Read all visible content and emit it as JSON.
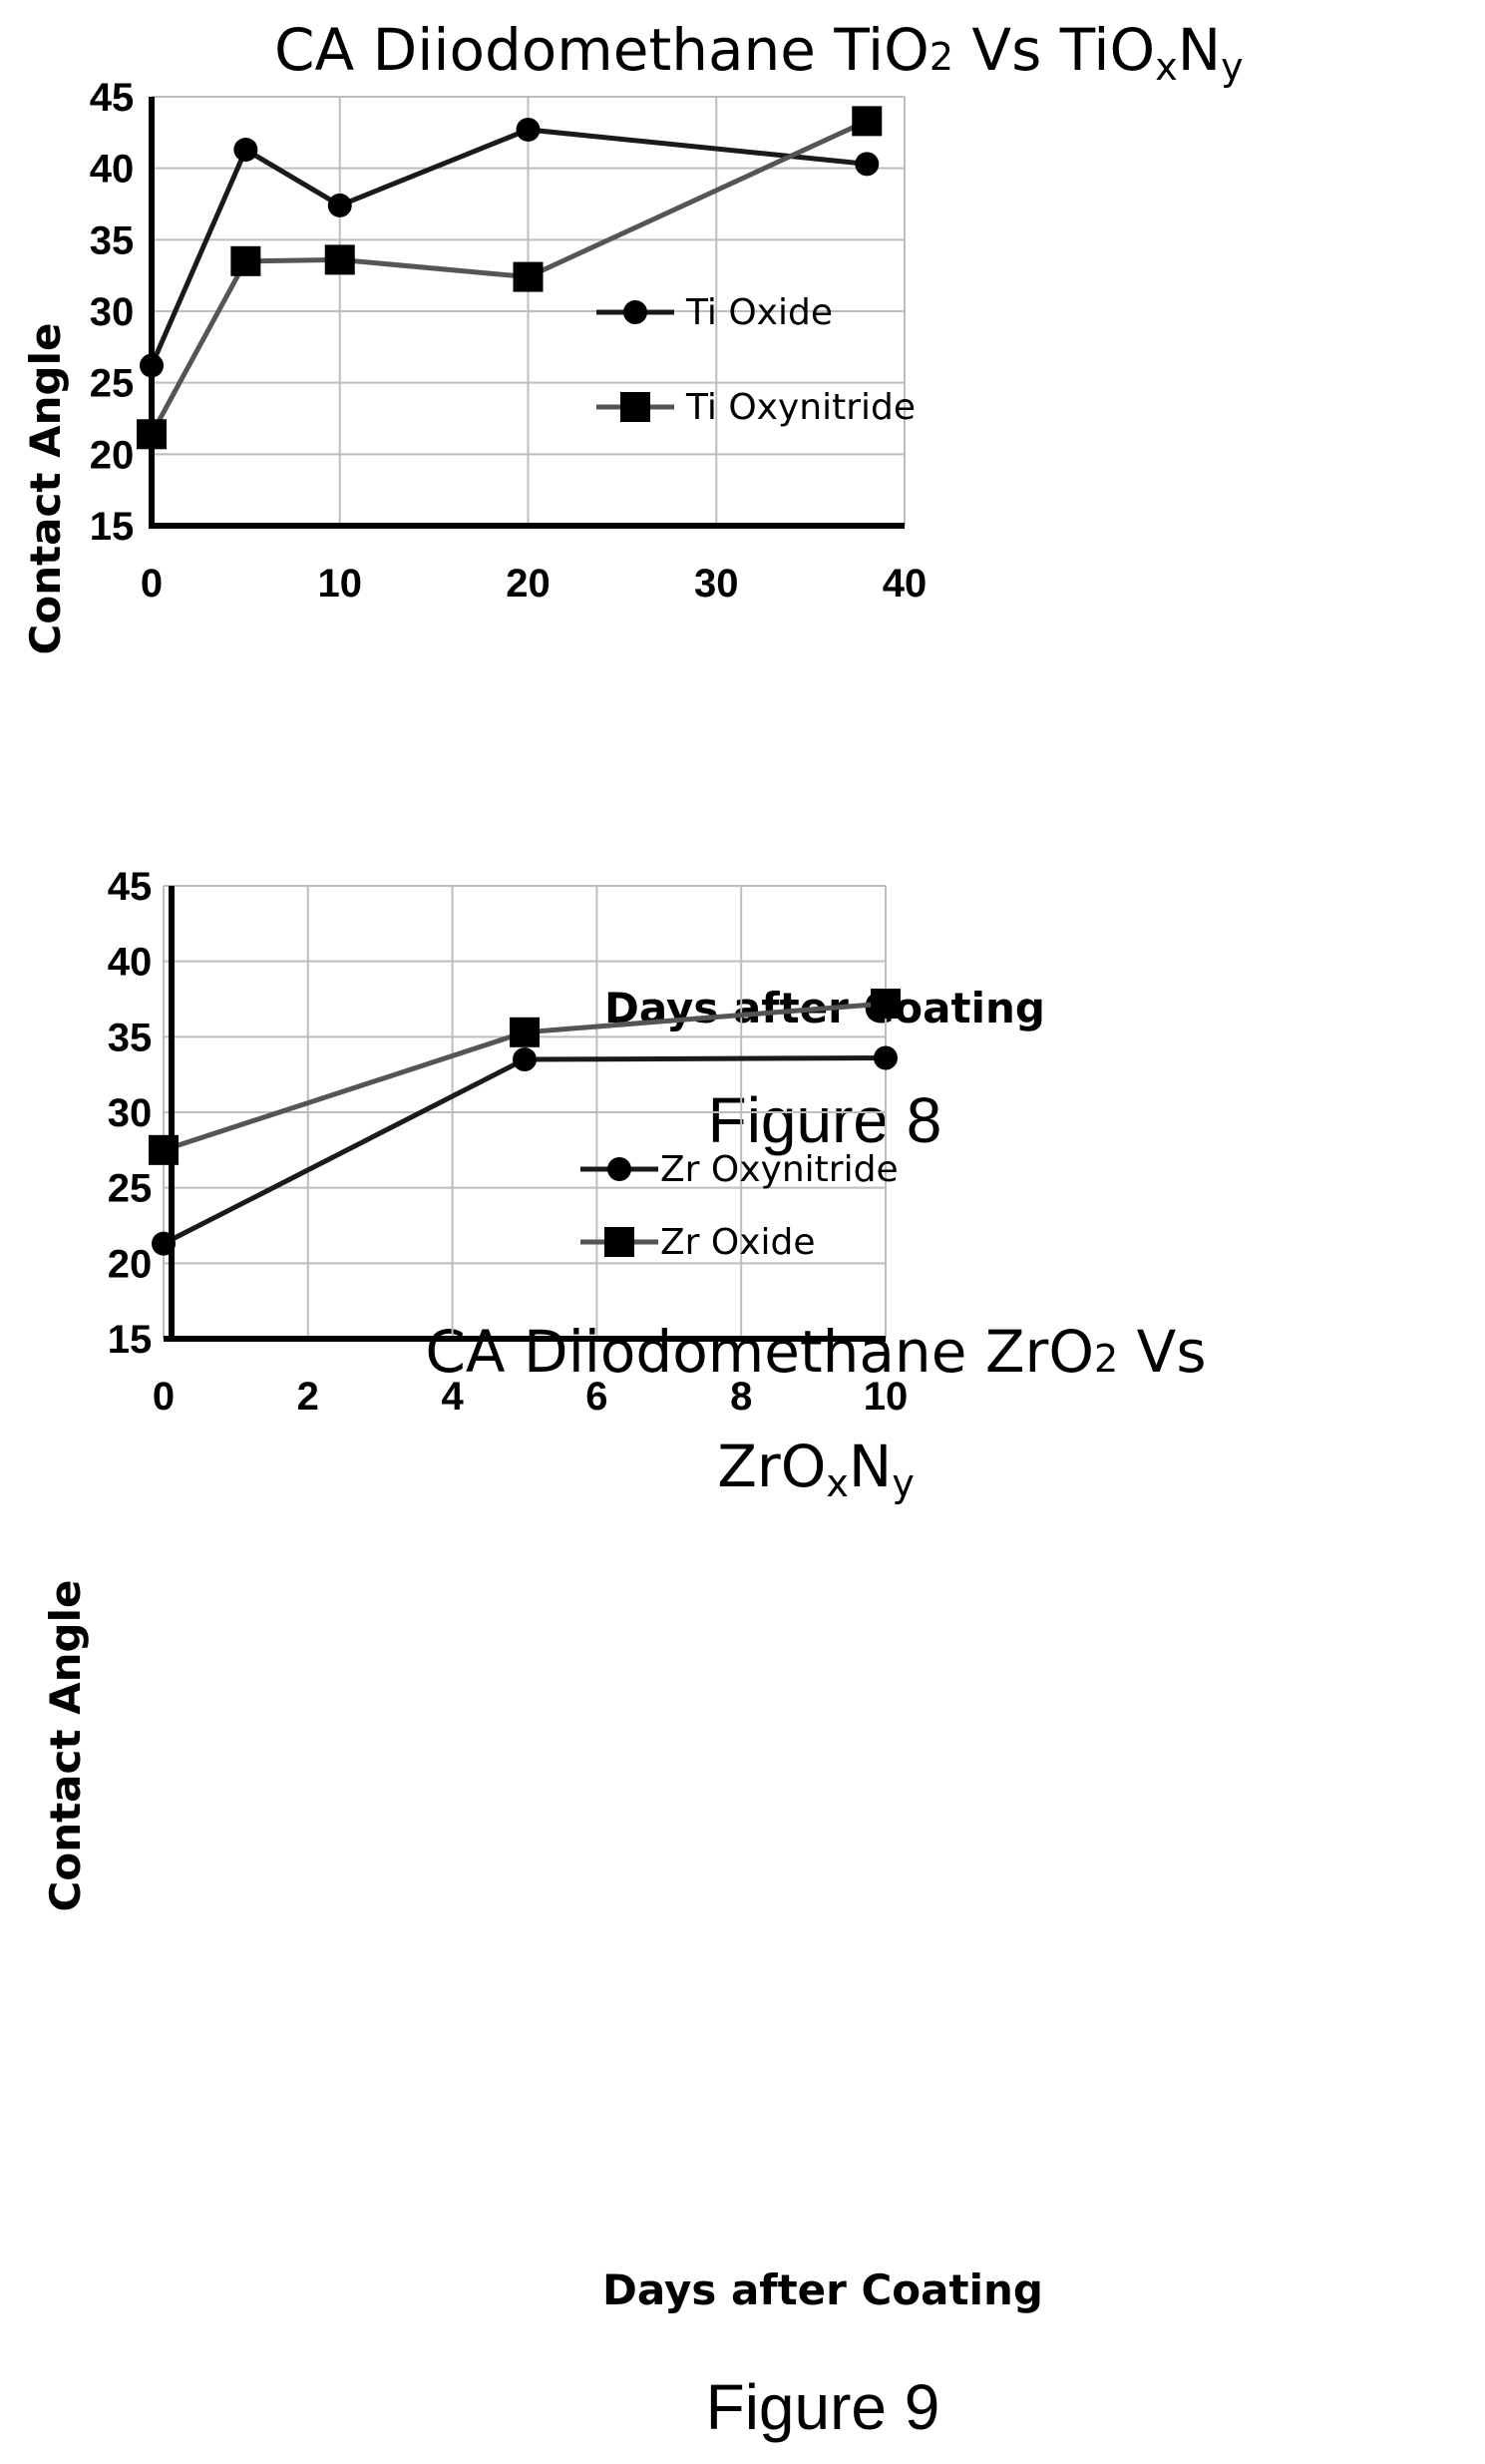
{
  "chart_data": [
    {
      "type": "line",
      "title_parts": [
        "CA  Diiodomethane TiO",
        "2",
        " Vs TiO",
        "x",
        "N",
        "y"
      ],
      "xlabel": "Days after Coating",
      "ylabel": "Contact Angle",
      "caption": "Figure 8",
      "xlim": [
        0,
        40
      ],
      "ylim": [
        15,
        45
      ],
      "xticks": [
        0,
        10,
        20,
        30,
        40
      ],
      "yticks": [
        15,
        20,
        25,
        30,
        35,
        40,
        45
      ],
      "grid": true,
      "legend_position": "right",
      "series": [
        {
          "name": "Ti Oxide",
          "marker": "circle",
          "color": "#1a1a1a",
          "x": [
            0,
            5,
            10,
            20,
            38
          ],
          "y": [
            26.2,
            41.3,
            37.4,
            42.7,
            40.3
          ]
        },
        {
          "name": "Ti Oxynitride",
          "marker": "square",
          "color": "#555555",
          "x": [
            0,
            5,
            10,
            20,
            38
          ],
          "y": [
            21.4,
            33.5,
            33.6,
            32.4,
            43.3
          ]
        }
      ]
    },
    {
      "type": "line",
      "title_parts": [
        "CA Diiodomethane ZrO",
        "2",
        " Vs",
        "ZrO",
        "x",
        "N",
        "y"
      ],
      "xlabel": "Days after Coating",
      "ylabel": "Contact Angle",
      "caption": "Figure 9",
      "xlim": [
        0,
        10
      ],
      "ylim": [
        15,
        45
      ],
      "xticks": [
        0,
        2,
        4,
        6,
        8,
        10
      ],
      "yticks": [
        15,
        20,
        25,
        30,
        35,
        40,
        45
      ],
      "grid": true,
      "legend_position": "right",
      "series": [
        {
          "name": "Zr Oxynitride",
          "marker": "circle",
          "color": "#1a1a1a",
          "x": [
            0,
            5,
            10
          ],
          "y": [
            21.3,
            33.5,
            33.6
          ]
        },
        {
          "name": "Zr Oxide",
          "marker": "square",
          "color": "#555555",
          "x": [
            0,
            5,
            10
          ],
          "y": [
            27.5,
            35.3,
            37.2
          ]
        }
      ]
    }
  ]
}
